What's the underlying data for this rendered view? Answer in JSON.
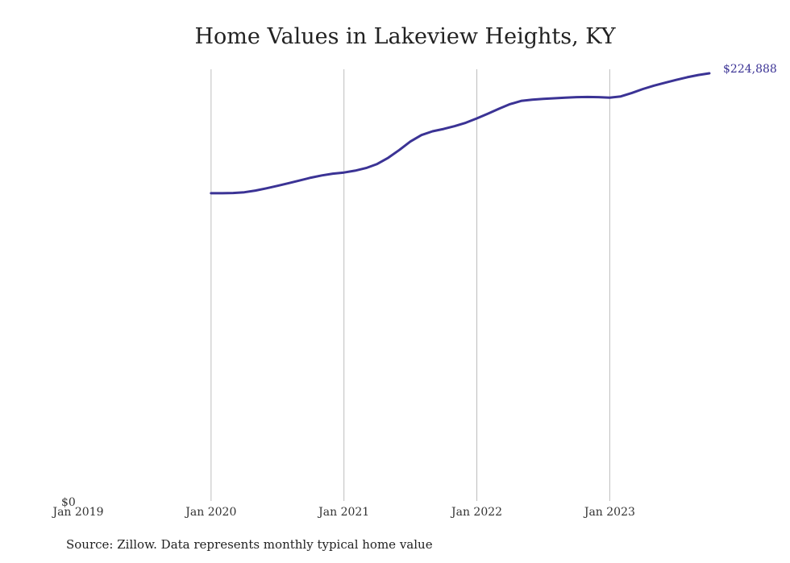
{
  "chart_data": {
    "type": "line",
    "title": "Home Values in Lakeview Heights, KY",
    "xlabel": "",
    "ylabel": "",
    "x_ticks": [
      {
        "label": "Jan 2019",
        "t": 2019.0
      },
      {
        "label": "Jan 2020",
        "t": 2020.0
      },
      {
        "label": "Jan 2021",
        "t": 2021.0
      },
      {
        "label": "Jan 2022",
        "t": 2022.0
      },
      {
        "label": "Jan 2023",
        "t": 2023.0
      }
    ],
    "y_tick_label": "$0",
    "xlim": [
      "Jan 2019",
      "Oct 2023"
    ],
    "ylim": [
      0,
      224888
    ],
    "grid": "vertical",
    "line_color": "#3b3395",
    "end_label": "$224,888",
    "series": [
      {
        "x": [
          "2020-01",
          "2020-02",
          "2020-03",
          "2020-04",
          "2020-05",
          "2020-06",
          "2020-07",
          "2020-08",
          "2020-09",
          "2020-10",
          "2020-11",
          "2020-12",
          "2021-01",
          "2021-02",
          "2021-03",
          "2021-04",
          "2021-05",
          "2021-06",
          "2021-07",
          "2021-08",
          "2021-09",
          "2021-10",
          "2021-11",
          "2021-12",
          "2022-01",
          "2022-02",
          "2022-03",
          "2022-04",
          "2022-05",
          "2022-06",
          "2022-07",
          "2022-08",
          "2022-09",
          "2022-10",
          "2022-11",
          "2022-12",
          "2023-01",
          "2023-02",
          "2023-03",
          "2023-04",
          "2023-05",
          "2023-06",
          "2023-07",
          "2023-08",
          "2023-09",
          "2023-10"
        ],
        "values": [
          161600,
          161600,
          161700,
          162100,
          163000,
          164200,
          165500,
          166900,
          168300,
          169800,
          171000,
          171900,
          172500,
          173500,
          174900,
          177000,
          180300,
          184400,
          188900,
          192300,
          194300,
          195500,
          197000,
          198800,
          201100,
          203600,
          206200,
          208600,
          210300,
          211000,
          211400,
          211700,
          212000,
          212300,
          212400,
          212300,
          212000,
          212700,
          214500,
          216600,
          218400,
          219900,
          221400,
          222800,
          224000,
          224888
        ]
      }
    ]
  },
  "source_note": "Source: Zillow. Data represents monthly typical home value"
}
